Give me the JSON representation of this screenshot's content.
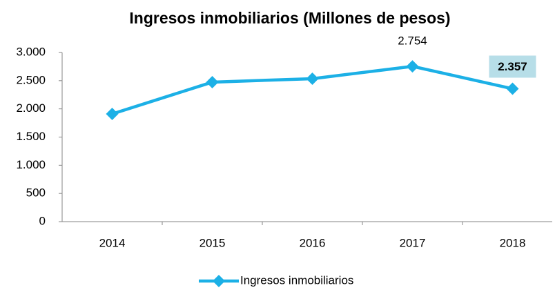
{
  "chart_data": {
    "type": "line",
    "title": "Ingresos inmobiliarios (Millones de pesos)",
    "categories": [
      "2014",
      "2015",
      "2016",
      "2017",
      "2018"
    ],
    "series": [
      {
        "name": "Ingresos inmobiliarios",
        "color": "#1cb0e6",
        "values": [
          1910,
          2474,
          2535,
          2754,
          2357
        ],
        "value_labels": [
          null,
          null,
          null,
          "2.754",
          "2.357"
        ]
      }
    ],
    "ylim": [
      0,
      3000
    ],
    "yticks": [
      0,
      500,
      {
        "value": 1000,
        "label": "1.000"
      },
      {
        "value": 1500,
        "label": "1.500"
      },
      {
        "value": 2000,
        "label": "2.000"
      },
      {
        "value": 2500,
        "label": "2.500"
      },
      {
        "value": 3000,
        "label": "3.000"
      }
    ],
    "legend": "bottom"
  }
}
